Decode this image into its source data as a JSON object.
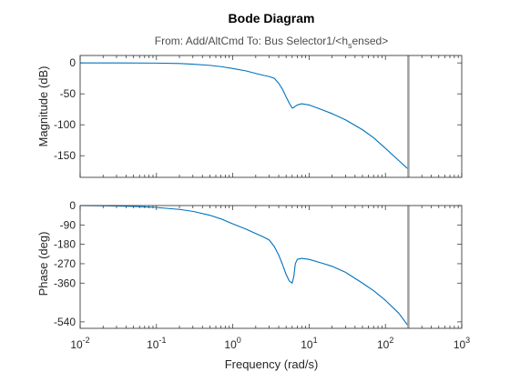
{
  "chart_data": {
    "type": "line",
    "title": "Bode Diagram",
    "subtitle": {
      "prefix": "From: Add/AltCmd  To: Bus Selector1/<h",
      "sub": "s",
      "suffix": "ensed>"
    },
    "xlabel": "Frequency (rad/s)",
    "xscale": "log",
    "xlim": [
      0.01,
      1000
    ],
    "x_ticks": [
      {
        "base": "10",
        "exp": "-2"
      },
      {
        "base": "10",
        "exp": "-1"
      },
      {
        "base": "10",
        "exp": "0"
      },
      {
        "base": "10",
        "exp": "1"
      },
      {
        "base": "10",
        "exp": "2"
      },
      {
        "base": "10",
        "exp": "3"
      }
    ],
    "line_color": "#0072bd",
    "marker_line_color": "#a0a0a0",
    "marker_frequency": 200,
    "grid": false,
    "panels": [
      {
        "ylabel": "Magnitude (dB)",
        "ylim": [
          -185,
          12
        ],
        "yticks": [
          0,
          -50,
          -100,
          -150
        ],
        "ytick_labels": [
          "0",
          "-50",
          "-100",
          "-150"
        ],
        "x": [
          0.01,
          0.03,
          0.1,
          0.2,
          0.3,
          0.5,
          0.7,
          1,
          1.5,
          2,
          2.5,
          3,
          3.5,
          4,
          4.5,
          5,
          5.5,
          6,
          6.3,
          6.6,
          7,
          8,
          10,
          15,
          20,
          30,
          50,
          70,
          100,
          150,
          200
        ],
        "values": [
          0,
          0,
          -0.3,
          -1,
          -2,
          -4,
          -6,
          -9,
          -13,
          -17,
          -20,
          -22,
          -25,
          -33,
          -43,
          -55,
          -65,
          -73,
          -72,
          -70,
          -68,
          -66,
          -68,
          -76,
          -82,
          -92,
          -108,
          -121,
          -138,
          -158,
          -172
        ]
      },
      {
        "ylabel": "Phase (deg)",
        "ylim": [
          -570,
          0
        ],
        "yticks": [
          0,
          -90,
          -180,
          -270,
          -360,
          -540
        ],
        "ytick_labels": [
          "0",
          "-90",
          "-180",
          "-270",
          "-360",
          "-540"
        ],
        "x": [
          0.01,
          0.02,
          0.03,
          0.05,
          0.07,
          0.1,
          0.2,
          0.3,
          0.5,
          0.7,
          1,
          1.5,
          2,
          2.5,
          3,
          3.5,
          4,
          4.5,
          5,
          5.5,
          6,
          6.3,
          6.6,
          7,
          8,
          10,
          15,
          20,
          30,
          50,
          70,
          100,
          150,
          180,
          200
        ],
        "values": [
          0,
          -1,
          -2,
          -4,
          -6,
          -9,
          -18,
          -27,
          -45,
          -62,
          -85,
          -110,
          -130,
          -145,
          -160,
          -190,
          -230,
          -275,
          -320,
          -350,
          -360,
          -330,
          -270,
          -250,
          -245,
          -250,
          -268,
          -282,
          -310,
          -360,
          -395,
          -440,
          -500,
          -538,
          -560
        ]
      }
    ]
  }
}
